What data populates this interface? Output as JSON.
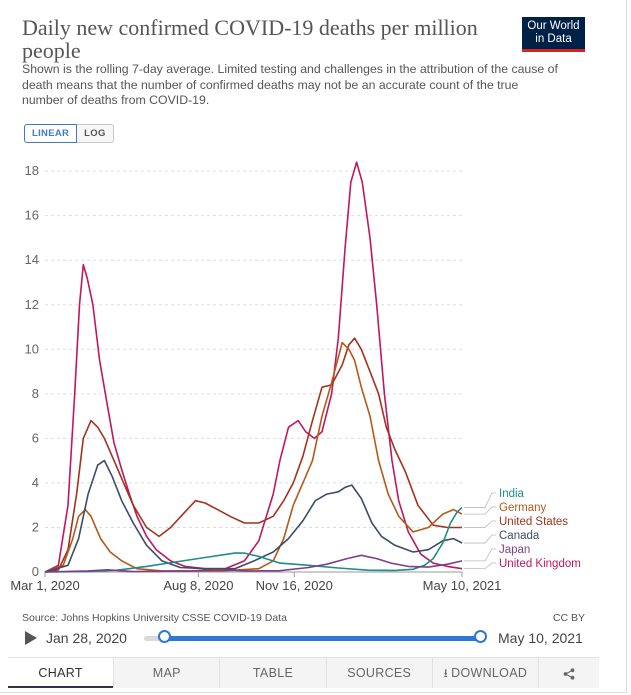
{
  "header": {
    "title": "Daily new confirmed COVID-19 deaths per million people",
    "subtitle": "Shown is the rolling 7-day average. Limited testing and challenges in the attribution of the cause of death means that the number of confirmed deaths may not be an accurate count of the true number of deaths from COVID-19.",
    "logo_line1": "Our World",
    "logo_line2": "in Data"
  },
  "scale_toggle": {
    "linear_label": "LINEAR",
    "log_label": "LOG",
    "active": "linear"
  },
  "chart_data": {
    "type": "line",
    "title": "Daily new confirmed COVID-19 deaths per million people",
    "x_tick_labels": [
      "Mar 1, 2020",
      "Aug 8, 2020",
      "Nov 16, 2020",
      "May 10, 2021"
    ],
    "x_range": [
      "2020-03-01",
      "2021-05-10"
    ],
    "y_ticks": [
      0,
      2,
      4,
      6,
      8,
      10,
      12,
      14,
      16,
      18
    ],
    "ylim": [
      0,
      18.5
    ],
    "grid": "horizontal dotted",
    "legend_placement": "right, end-of-line labels",
    "series": [
      {
        "name": "United Kingdom",
        "color": "#c0175f",
        "points": [
          [
            "2020-03-01",
            0
          ],
          [
            "2020-03-15",
            0.3
          ],
          [
            "2020-03-25",
            3
          ],
          [
            "2020-04-01",
            8
          ],
          [
            "2020-04-06",
            12
          ],
          [
            "2020-04-10",
            13.8
          ],
          [
            "2020-04-14",
            13.2
          ],
          [
            "2020-04-20",
            12
          ],
          [
            "2020-04-27",
            9.5
          ],
          [
            "2020-05-05",
            7.5
          ],
          [
            "2020-05-12",
            5.8
          ],
          [
            "2020-05-20",
            4.6
          ],
          [
            "2020-05-28",
            3.5
          ],
          [
            "2020-06-05",
            2.5
          ],
          [
            "2020-06-15",
            1.6
          ],
          [
            "2020-06-25",
            1.0
          ],
          [
            "2020-07-10",
            0.5
          ],
          [
            "2020-07-25",
            0.25
          ],
          [
            "2020-08-15",
            0.15
          ],
          [
            "2020-09-05",
            0.15
          ],
          [
            "2020-09-25",
            0.5
          ],
          [
            "2020-10-10",
            1.4
          ],
          [
            "2020-10-25",
            3.5
          ],
          [
            "2020-11-01",
            5.0
          ],
          [
            "2020-11-10",
            6.5
          ],
          [
            "2020-11-20",
            6.8
          ],
          [
            "2020-11-28",
            6.3
          ],
          [
            "2020-12-07",
            6.0
          ],
          [
            "2020-12-15",
            6.3
          ],
          [
            "2020-12-25",
            8.0
          ],
          [
            "2021-01-01",
            10.5
          ],
          [
            "2021-01-08",
            14.5
          ],
          [
            "2021-01-14",
            17.5
          ],
          [
            "2021-01-20",
            18.4
          ],
          [
            "2021-01-26",
            17.5
          ],
          [
            "2021-02-03",
            15.0
          ],
          [
            "2021-02-10",
            12.0
          ],
          [
            "2021-02-18",
            8.0
          ],
          [
            "2021-02-26",
            5.0
          ],
          [
            "2021-03-05",
            3.2
          ],
          [
            "2021-03-15",
            1.8
          ],
          [
            "2021-03-28",
            0.8
          ],
          [
            "2021-04-10",
            0.4
          ],
          [
            "2021-04-25",
            0.25
          ],
          [
            "2021-05-10",
            0.15
          ]
        ]
      },
      {
        "name": "United States",
        "color": "#a2331f",
        "points": [
          [
            "2020-03-01",
            0
          ],
          [
            "2020-03-15",
            0.1
          ],
          [
            "2020-03-25",
            1.0
          ],
          [
            "2020-04-03",
            3.5
          ],
          [
            "2020-04-10",
            6.0
          ],
          [
            "2020-04-18",
            6.8
          ],
          [
            "2020-04-25",
            6.5
          ],
          [
            "2020-05-02",
            6.0
          ],
          [
            "2020-05-12",
            5.0
          ],
          [
            "2020-05-22",
            4.0
          ],
          [
            "2020-06-01",
            3.0
          ],
          [
            "2020-06-15",
            2.0
          ],
          [
            "2020-06-28",
            1.6
          ],
          [
            "2020-07-10",
            2.0
          ],
          [
            "2020-07-25",
            2.7
          ],
          [
            "2020-08-05",
            3.2
          ],
          [
            "2020-08-15",
            3.1
          ],
          [
            "2020-08-28",
            2.8
          ],
          [
            "2020-09-10",
            2.5
          ],
          [
            "2020-09-25",
            2.2
          ],
          [
            "2020-10-10",
            2.2
          ],
          [
            "2020-10-25",
            2.5
          ],
          [
            "2020-11-05",
            3.2
          ],
          [
            "2020-11-15",
            4.0
          ],
          [
            "2020-11-25",
            5.2
          ],
          [
            "2020-12-05",
            6.8
          ],
          [
            "2020-12-15",
            8.3
          ],
          [
            "2020-12-25",
            8.4
          ],
          [
            "2021-01-05",
            9.3
          ],
          [
            "2021-01-12",
            10.2
          ],
          [
            "2021-01-18",
            10.5
          ],
          [
            "2021-01-25",
            10.0
          ],
          [
            "2021-02-03",
            9.0
          ],
          [
            "2021-02-12",
            8.0
          ],
          [
            "2021-02-20",
            6.5
          ],
          [
            "2021-03-01",
            5.5
          ],
          [
            "2021-03-12",
            4.5
          ],
          [
            "2021-03-25",
            3.0
          ],
          [
            "2021-04-10",
            2.1
          ],
          [
            "2021-04-25",
            2.0
          ],
          [
            "2021-05-10",
            2.0
          ]
        ]
      },
      {
        "name": "Germany",
        "color": "#b35a1a",
        "points": [
          [
            "2020-03-01",
            0
          ],
          [
            "2020-03-20",
            0.3
          ],
          [
            "2020-03-30",
            1.5
          ],
          [
            "2020-04-05",
            2.5
          ],
          [
            "2020-04-12",
            2.8
          ],
          [
            "2020-04-18",
            2.5
          ],
          [
            "2020-04-28",
            1.5
          ],
          [
            "2020-05-08",
            0.9
          ],
          [
            "2020-05-20",
            0.5
          ],
          [
            "2020-06-05",
            0.15
          ],
          [
            "2020-07-01",
            0.05
          ],
          [
            "2020-09-01",
            0.05
          ],
          [
            "2020-10-10",
            0.15
          ],
          [
            "2020-10-25",
            0.5
          ],
          [
            "2020-11-05",
            1.5
          ],
          [
            "2020-11-15",
            3.0
          ],
          [
            "2020-11-25",
            4.0
          ],
          [
            "2020-12-05",
            5.0
          ],
          [
            "2020-12-15",
            7.0
          ],
          [
            "2020-12-25",
            8.5
          ],
          [
            "2021-01-05",
            10.3
          ],
          [
            "2021-01-12",
            10.0
          ],
          [
            "2021-01-18",
            9.5
          ],
          [
            "2021-01-25",
            8.3
          ],
          [
            "2021-02-03",
            7.0
          ],
          [
            "2021-02-12",
            5.0
          ],
          [
            "2021-02-22",
            3.5
          ],
          [
            "2021-03-05",
            2.5
          ],
          [
            "2021-03-20",
            1.8
          ],
          [
            "2021-04-05",
            2.0
          ],
          [
            "2021-04-20",
            2.6
          ],
          [
            "2021-05-01",
            2.8
          ],
          [
            "2021-05-10",
            2.6
          ]
        ]
      },
      {
        "name": "Canada",
        "color": "#3c4e66",
        "points": [
          [
            "2020-03-01",
            0
          ],
          [
            "2020-03-25",
            0.3
          ],
          [
            "2020-04-05",
            1.5
          ],
          [
            "2020-04-15",
            3.5
          ],
          [
            "2020-04-25",
            4.8
          ],
          [
            "2020-05-02",
            5.0
          ],
          [
            "2020-05-10",
            4.3
          ],
          [
            "2020-05-20",
            3.2
          ],
          [
            "2020-06-01",
            2.2
          ],
          [
            "2020-06-15",
            1.2
          ],
          [
            "2020-07-01",
            0.5
          ],
          [
            "2020-07-20",
            0.2
          ],
          [
            "2020-08-15",
            0.15
          ],
          [
            "2020-09-15",
            0.15
          ],
          [
            "2020-10-05",
            0.5
          ],
          [
            "2020-10-25",
            0.9
          ],
          [
            "2020-11-10",
            1.5
          ],
          [
            "2020-11-25",
            2.3
          ],
          [
            "2020-12-08",
            3.2
          ],
          [
            "2020-12-20",
            3.5
          ],
          [
            "2021-01-01",
            3.6
          ],
          [
            "2021-01-08",
            3.8
          ],
          [
            "2021-01-15",
            3.9
          ],
          [
            "2021-01-25",
            3.3
          ],
          [
            "2021-02-05",
            2.2
          ],
          [
            "2021-02-15",
            1.6
          ],
          [
            "2021-03-01",
            1.2
          ],
          [
            "2021-03-20",
            0.9
          ],
          [
            "2021-04-05",
            1.0
          ],
          [
            "2021-04-20",
            1.4
          ],
          [
            "2021-05-01",
            1.5
          ],
          [
            "2021-05-10",
            1.3
          ]
        ]
      },
      {
        "name": "India",
        "color": "#1e8c88",
        "points": [
          [
            "2020-03-01",
            0
          ],
          [
            "2020-04-15",
            0.02
          ],
          [
            "2020-05-15",
            0.08
          ],
          [
            "2020-06-15",
            0.25
          ],
          [
            "2020-07-15",
            0.45
          ],
          [
            "2020-08-15",
            0.65
          ],
          [
            "2020-09-15",
            0.85
          ],
          [
            "2020-09-25",
            0.85
          ],
          [
            "2020-10-10",
            0.7
          ],
          [
            "2020-11-01",
            0.4
          ],
          [
            "2020-12-01",
            0.3
          ],
          [
            "2021-01-01",
            0.18
          ],
          [
            "2021-02-01",
            0.08
          ],
          [
            "2021-03-01",
            0.07
          ],
          [
            "2021-03-20",
            0.12
          ],
          [
            "2021-04-01",
            0.3
          ],
          [
            "2021-04-10",
            0.6
          ],
          [
            "2021-04-20",
            1.3
          ],
          [
            "2021-04-28",
            2.2
          ],
          [
            "2021-05-05",
            2.7
          ],
          [
            "2021-05-10",
            2.9
          ]
        ]
      },
      {
        "name": "Japan",
        "color": "#7f3e87",
        "points": [
          [
            "2020-03-01",
            0
          ],
          [
            "2020-04-15",
            0.05
          ],
          [
            "2020-05-05",
            0.1
          ],
          [
            "2020-06-01",
            0.02
          ],
          [
            "2020-08-01",
            0.05
          ],
          [
            "2020-08-25",
            0.1
          ],
          [
            "2020-10-01",
            0.05
          ],
          [
            "2020-11-01",
            0.06
          ],
          [
            "2020-12-01",
            0.2
          ],
          [
            "2020-12-20",
            0.35
          ],
          [
            "2021-01-10",
            0.6
          ],
          [
            "2021-01-25",
            0.75
          ],
          [
            "2021-02-10",
            0.6
          ],
          [
            "2021-02-25",
            0.4
          ],
          [
            "2021-03-15",
            0.25
          ],
          [
            "2021-04-05",
            0.22
          ],
          [
            "2021-04-25",
            0.35
          ],
          [
            "2021-05-10",
            0.5
          ]
        ]
      }
    ]
  },
  "legend": {
    "labels": [
      "India",
      "Germany",
      "United States",
      "Canada",
      "Japan",
      "United Kingdom"
    ]
  },
  "footer": {
    "source": "Source: Johns Hopkins University CSSE COVID-19 Data",
    "license": "CC BY"
  },
  "timeline": {
    "start_label": "Jan 28, 2020",
    "end_label": "May 10, 2021"
  },
  "tabs": {
    "chart": "CHART",
    "map": "MAP",
    "table": "TABLE",
    "sources": "SOURCES",
    "download": "DOWNLOAD"
  }
}
